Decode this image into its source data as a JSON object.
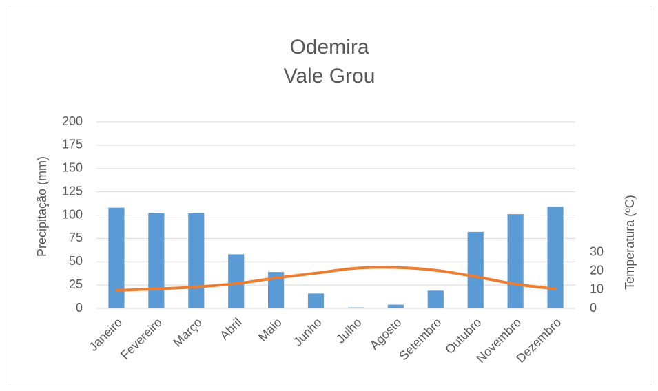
{
  "chart_data": {
    "type": "bar_line",
    "title": [
      "Odemira",
      "Vale Grou"
    ],
    "y_label": "Precipitação (mm)",
    "y2_label": "Temperatura (ºC)",
    "categories": [
      "Janeiro",
      "Fevereiro",
      "Março",
      "Abril",
      "Maio",
      "Junho",
      "Julho",
      "Agosto",
      "Setembro",
      "Outubro",
      "Novembro",
      "Dezembro"
    ],
    "series": [
      {
        "type": "bar",
        "color": "#5b9bd5",
        "values": [
          108,
          102,
          102,
          58,
          39,
          16,
          1,
          4,
          19,
          82,
          101,
          109
        ]
      },
      {
        "type": "line",
        "axis": "y2",
        "color": "#ed7d31",
        "values": [
          9.6,
          10.4,
          11.5,
          13.3,
          16.3,
          18.9,
          21.5,
          21.9,
          20.4,
          17,
          13,
          10.4
        ]
      }
    ],
    "ylim": [
      0,
      200
    ],
    "yticks": [
      0,
      25,
      50,
      75,
      100,
      125,
      150,
      175,
      200
    ],
    "y2lim": [
      0,
      100
    ],
    "y2ticks": [
      0,
      10,
      20,
      30
    ],
    "grid": true
  }
}
